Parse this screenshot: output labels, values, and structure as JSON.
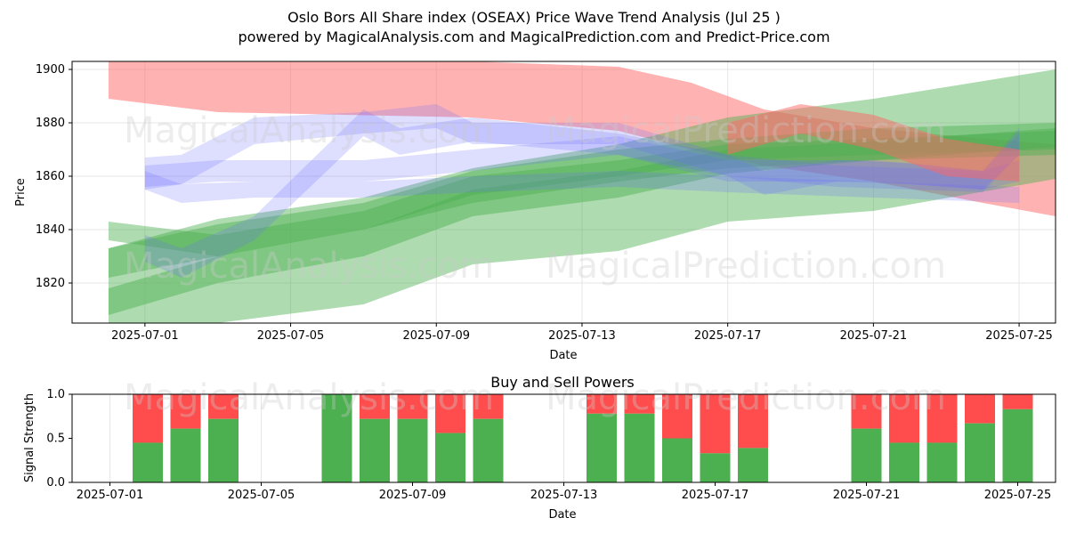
{
  "chart_data": [
    {
      "type": "area",
      "title": "Oslo Bors All Share index (OSEAX) Price Wave Trend Analysis (Jul 25 )",
      "subtitle": "powered by MagicalAnalysis.com and MagicalPrediction.com and Predict-Price.com",
      "xlabel": "Date",
      "ylabel": "Price",
      "xlim": [
        "2025-06-29",
        "2025-07-26"
      ],
      "ylim": [
        1805,
        1903
      ],
      "x_ticks": [
        "2025-07-01",
        "2025-07-05",
        "2025-07-09",
        "2025-07-13",
        "2025-07-17",
        "2025-07-21",
        "2025-07-25"
      ],
      "y_ticks": [
        1820,
        1840,
        1860,
        1880,
        1900
      ],
      "grid": true,
      "colors": {
        "red": "#ff6666",
        "green": "#4caf50",
        "blue": "#6b6bff"
      },
      "series": [
        {
          "color": "red",
          "upper": [
            [
              "2025-06-30",
              1903
            ],
            [
              "2025-07-03",
              1903
            ],
            [
              "2025-07-10",
              1903
            ],
            [
              "2025-07-14",
              1901
            ],
            [
              "2025-07-16",
              1895
            ],
            [
              "2025-07-18",
              1885
            ],
            [
              "2025-07-21",
              1878
            ],
            [
              "2025-07-24",
              1874
            ],
            [
              "2025-07-26",
              1872
            ]
          ],
          "lower": [
            [
              "2025-06-30",
              1889
            ],
            [
              "2025-07-03",
              1884
            ],
            [
              "2025-07-10",
              1882
            ],
            [
              "2025-07-14",
              1877
            ],
            [
              "2025-07-16",
              1870
            ],
            [
              "2025-07-18",
              1864
            ],
            [
              "2025-07-21",
              1858
            ],
            [
              "2025-07-24",
              1850
            ],
            [
              "2025-07-26",
              1845
            ]
          ]
        },
        {
          "color": "green",
          "upper": [
            [
              "2025-06-30",
              1833
            ],
            [
              "2025-07-03",
              1844
            ],
            [
              "2025-07-07",
              1852
            ],
            [
              "2025-07-10",
              1863
            ],
            [
              "2025-07-14",
              1872
            ],
            [
              "2025-07-17",
              1882
            ],
            [
              "2025-07-21",
              1889
            ],
            [
              "2025-07-26",
              1900
            ]
          ],
          "lower": [
            [
              "2025-06-30",
              1800
            ],
            [
              "2025-07-03",
              1805
            ],
            [
              "2025-07-07",
              1812
            ],
            [
              "2025-07-10",
              1827
            ],
            [
              "2025-07-14",
              1832
            ],
            [
              "2025-07-17",
              1843
            ],
            [
              "2025-07-21",
              1847
            ],
            [
              "2025-07-26",
              1859
            ]
          ]
        },
        {
          "color": "green",
          "upper": [
            [
              "2025-06-30",
              1818
            ],
            [
              "2025-07-03",
              1830
            ],
            [
              "2025-07-07",
              1840
            ],
            [
              "2025-07-10",
              1855
            ],
            [
              "2025-07-14",
              1862
            ],
            [
              "2025-07-17",
              1870
            ],
            [
              "2025-07-21",
              1873
            ],
            [
              "2025-07-26",
              1878
            ]
          ],
          "lower": [
            [
              "2025-06-30",
              1808
            ],
            [
              "2025-07-03",
              1820
            ],
            [
              "2025-07-07",
              1830
            ],
            [
              "2025-07-10",
              1845
            ],
            [
              "2025-07-14",
              1852
            ],
            [
              "2025-07-17",
              1861
            ],
            [
              "2025-07-21",
              1866
            ],
            [
              "2025-07-26",
              1871
            ]
          ]
        },
        {
          "color": "green",
          "upper": [
            [
              "2025-06-30",
              1833
            ],
            [
              "2025-07-03",
              1842
            ],
            [
              "2025-07-07",
              1850
            ],
            [
              "2025-07-10",
              1862
            ],
            [
              "2025-07-14",
              1870
            ],
            [
              "2025-07-17",
              1874
            ],
            [
              "2025-07-21",
              1878
            ],
            [
              "2025-07-26",
              1880
            ]
          ],
          "lower": [
            [
              "2025-06-30",
              1822
            ],
            [
              "2025-07-03",
              1830
            ],
            [
              "2025-07-07",
              1840
            ],
            [
              "2025-07-10",
              1850
            ],
            [
              "2025-07-14",
              1858
            ],
            [
              "2025-07-17",
              1863
            ],
            [
              "2025-07-21",
              1866
            ],
            [
              "2025-07-26",
              1868
            ]
          ]
        },
        {
          "color": "green",
          "upper": [
            [
              "2025-06-30",
              1843
            ],
            [
              "2025-07-03",
              1838
            ],
            [
              "2025-07-07",
              1847
            ],
            [
              "2025-07-10",
              1860
            ],
            [
              "2025-07-14",
              1866
            ],
            [
              "2025-07-17",
              1872
            ],
            [
              "2025-07-21",
              1874
            ],
            [
              "2025-07-26",
              1877
            ]
          ],
          "lower": [
            [
              "2025-06-30",
              1836
            ],
            [
              "2025-07-03",
              1830
            ],
            [
              "2025-07-07",
              1840
            ],
            [
              "2025-07-10",
              1853
            ],
            [
              "2025-07-14",
              1860
            ],
            [
              "2025-07-17",
              1866
            ],
            [
              "2025-07-21",
              1868
            ],
            [
              "2025-07-26",
              1870
            ]
          ]
        },
        {
          "color": "blue",
          "upper": [
            [
              "2025-07-01",
              1867
            ],
            [
              "2025-07-02",
              1868
            ],
            [
              "2025-07-04",
              1882
            ],
            [
              "2025-07-07",
              1884
            ],
            [
              "2025-07-09",
              1887
            ],
            [
              "2025-07-10",
              1880
            ],
            [
              "2025-07-14",
              1880
            ],
            [
              "2025-07-17",
              1868
            ],
            [
              "2025-07-18",
              1862
            ],
            [
              "2025-07-20",
              1866
            ],
            [
              "2025-07-22",
              1865
            ],
            [
              "2025-07-24",
              1862
            ],
            [
              "2025-07-25",
              1866
            ]
          ],
          "lower": [
            [
              "2025-07-01",
              1855
            ],
            [
              "2025-07-02",
              1857
            ],
            [
              "2025-07-04",
              1872
            ],
            [
              "2025-07-07",
              1876
            ],
            [
              "2025-07-09",
              1878
            ],
            [
              "2025-07-10",
              1872
            ],
            [
              "2025-07-14",
              1872
            ],
            [
              "2025-07-17",
              1860
            ],
            [
              "2025-07-18",
              1853
            ],
            [
              "2025-07-20",
              1858
            ],
            [
              "2025-07-22",
              1857
            ],
            [
              "2025-07-24",
              1855
            ],
            [
              "2025-07-25",
              1858
            ]
          ]
        },
        {
          "color": "blue",
          "upper": [
            [
              "2025-07-01",
              1864
            ],
            [
              "2025-07-03",
              1866
            ],
            [
              "2025-07-07",
              1866
            ],
            [
              "2025-07-10",
              1870
            ],
            [
              "2025-07-14",
              1875
            ],
            [
              "2025-07-17",
              1866
            ],
            [
              "2025-07-21",
              1866
            ],
            [
              "2025-07-24",
              1862
            ],
            [
              "2025-07-25",
              1878
            ]
          ],
          "lower": [
            [
              "2025-07-01",
              1856
            ],
            [
              "2025-07-03",
              1858
            ],
            [
              "2025-07-07",
              1858
            ],
            [
              "2025-07-10",
              1862
            ],
            [
              "2025-07-14",
              1868
            ],
            [
              "2025-07-17",
              1858
            ],
            [
              "2025-07-21",
              1858
            ],
            [
              "2025-07-24",
              1855
            ],
            [
              "2025-07-25",
              1868
            ]
          ]
        },
        {
          "color": "blue",
          "upper": [
            [
              "2025-07-01",
              1838
            ],
            [
              "2025-07-02",
              1833
            ],
            [
              "2025-07-04",
              1845
            ],
            [
              "2025-07-07",
              1885
            ],
            [
              "2025-07-08",
              1878
            ],
            [
              "2025-07-10",
              1882
            ],
            [
              "2025-07-14",
              1876
            ],
            [
              "2025-07-17",
              1868
            ],
            [
              "2025-07-20",
              1864
            ],
            [
              "2025-07-24",
              1862
            ],
            [
              "2025-07-25",
              1876
            ]
          ],
          "lower": [
            [
              "2025-07-01",
              1828
            ],
            [
              "2025-07-02",
              1822
            ],
            [
              "2025-07-04",
              1836
            ],
            [
              "2025-07-07",
              1875
            ],
            [
              "2025-07-08",
              1868
            ],
            [
              "2025-07-10",
              1873
            ],
            [
              "2025-07-14",
              1868
            ],
            [
              "2025-07-17",
              1860
            ],
            [
              "2025-07-20",
              1856
            ],
            [
              "2025-07-24",
              1854
            ],
            [
              "2025-07-25",
              1868
            ]
          ]
        },
        {
          "color": "blue",
          "upper": [
            [
              "2025-07-01",
              1862
            ],
            [
              "2025-07-02",
              1857
            ],
            [
              "2025-07-04",
              1858
            ],
            [
              "2025-07-07",
              1858
            ],
            [
              "2025-07-10",
              1860
            ],
            [
              "2025-07-14",
              1862
            ],
            [
              "2025-07-17",
              1860
            ],
            [
              "2025-07-21",
              1858
            ],
            [
              "2025-07-25",
              1856
            ]
          ],
          "lower": [
            [
              "2025-07-01",
              1855
            ],
            [
              "2025-07-02",
              1850
            ],
            [
              "2025-07-04",
              1852
            ],
            [
              "2025-07-07",
              1852
            ],
            [
              "2025-07-10",
              1854
            ],
            [
              "2025-07-14",
              1856
            ],
            [
              "2025-07-17",
              1854
            ],
            [
              "2025-07-21",
              1852
            ],
            [
              "2025-07-25",
              1850
            ]
          ]
        },
        {
          "color": "red",
          "upper": [
            [
              "2025-07-17",
              1880
            ],
            [
              "2025-07-19",
              1887
            ],
            [
              "2025-07-21",
              1883
            ],
            [
              "2025-07-23",
              1874
            ],
            [
              "2025-07-25",
              1870
            ]
          ],
          "lower": [
            [
              "2025-07-17",
              1868
            ],
            [
              "2025-07-19",
              1876
            ],
            [
              "2025-07-21",
              1870
            ],
            [
              "2025-07-23",
              1860
            ],
            [
              "2025-07-25",
              1858
            ]
          ]
        }
      ]
    },
    {
      "type": "bar",
      "title": "Buy and Sell Powers",
      "xlabel": "Date",
      "ylabel": "Signal Strength",
      "ylim": [
        0,
        1.0
      ],
      "y_ticks": [
        "0.0",
        "0.5",
        "1.0"
      ],
      "x_ticks": [
        "2025-07-01",
        "2025-07-05",
        "2025-07-09",
        "2025-07-13",
        "2025-07-17",
        "2025-07-21",
        "2025-07-25"
      ],
      "xlim": [
        "2025-06-30",
        "2025-07-26"
      ],
      "colors": {
        "buy": "#4caf50",
        "sell": "#ff4d4d"
      },
      "categories": [
        "2025-07-02",
        "2025-07-03",
        "2025-07-04",
        "2025-07-07",
        "2025-07-08",
        "2025-07-09",
        "2025-07-10",
        "2025-07-11",
        "2025-07-14",
        "2025-07-15",
        "2025-07-16",
        "2025-07-17",
        "2025-07-18",
        "2025-07-21",
        "2025-07-22",
        "2025-07-23",
        "2025-07-24",
        "2025-07-25"
      ],
      "buy": [
        0.45,
        0.61,
        0.72,
        1.0,
        0.72,
        0.72,
        0.56,
        0.72,
        0.78,
        0.78,
        0.5,
        0.33,
        0.39,
        0.61,
        0.45,
        0.45,
        0.67,
        0.83
      ]
    }
  ],
  "watermarks": [
    "MagicalAnalysis.com",
    "MagicalPrediction.com"
  ]
}
